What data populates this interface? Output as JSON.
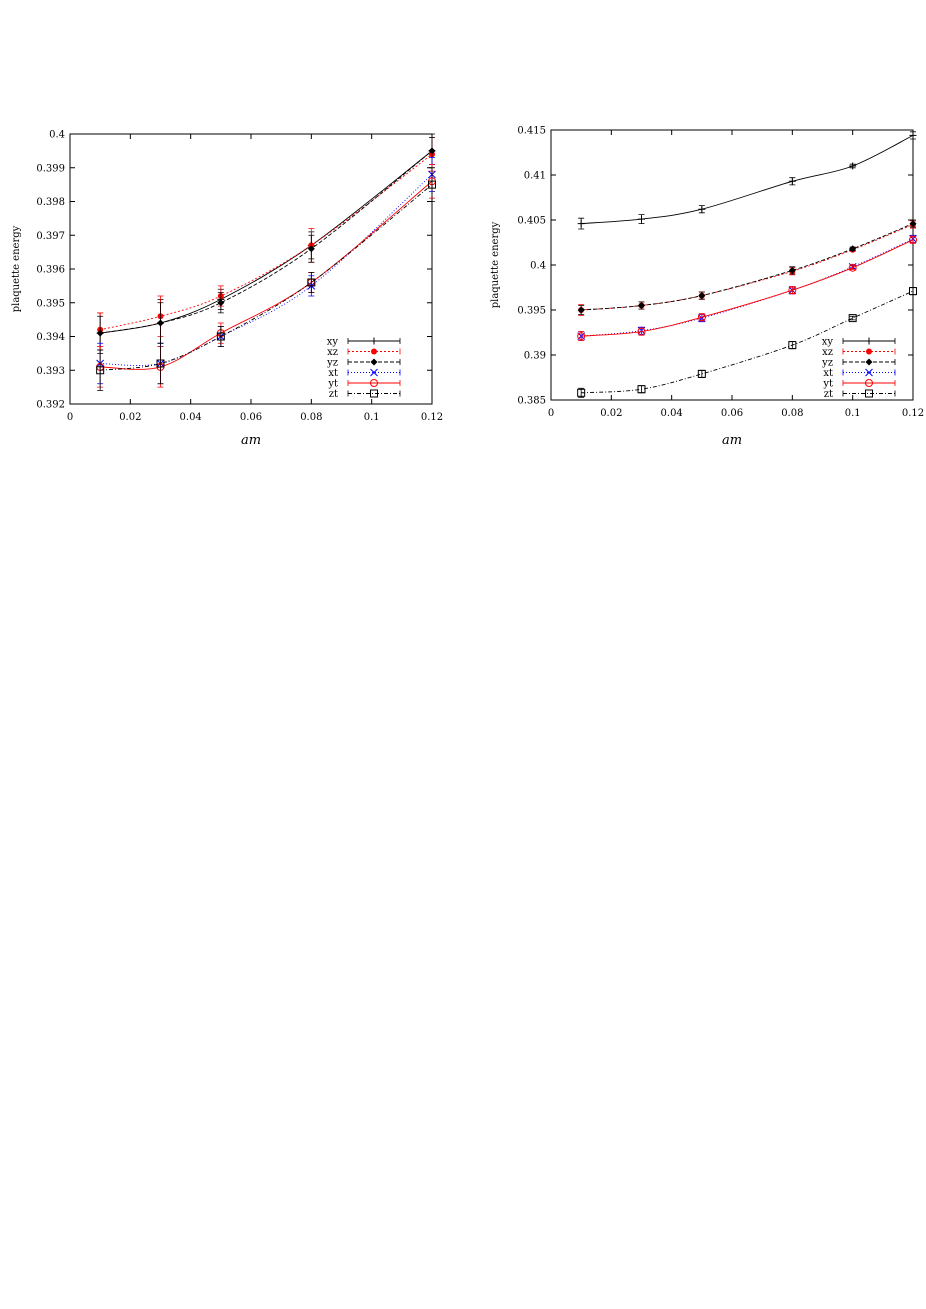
{
  "chart_data": [
    {
      "type": "line",
      "xlabel": "am",
      "ylabel": "plaquette energy",
      "xlim": [
        0,
        0.12
      ],
      "ylim": [
        0.392,
        0.4
      ],
      "xticks": [
        "0",
        "0.02",
        "0.04",
        "0.06",
        "0.08",
        "0.1",
        "0.12"
      ],
      "yticks": [
        "0.392",
        "0.393",
        "0.394",
        "0.395",
        "0.396",
        "0.397",
        "0.398",
        "0.399",
        "0.4"
      ],
      "x": [
        0.01,
        0.03,
        0.05,
        0.08,
        0.12
      ],
      "legend_position": "bottom-right",
      "series": [
        {
          "name": "xy",
          "color": "#000000",
          "marker": "plus",
          "dash": "",
          "values": [
            0.3941,
            0.3944,
            0.3951,
            0.3967,
            0.3995
          ],
          "errors": [
            0.0006,
            0.0007,
            0.0003,
            0.0004,
            0.0005
          ]
        },
        {
          "name": "xz",
          "color": "#ff0000",
          "marker": "filled-circle",
          "dash": "2,2",
          "values": [
            0.3942,
            0.3946,
            0.3952,
            0.3967,
            0.3994
          ],
          "errors": [
            0.0005,
            0.0006,
            0.0003,
            0.0005,
            0.0005
          ]
        },
        {
          "name": "yz",
          "color": "#000000",
          "marker": "filled-diamond",
          "dash": "4,2",
          "values": [
            0.3941,
            0.3944,
            0.395,
            0.3966,
            0.3995
          ],
          "errors": [
            0.0005,
            0.0006,
            0.0003,
            0.0004,
            0.0004
          ]
        },
        {
          "name": "xt",
          "color": "#0000ff",
          "marker": "cross",
          "dash": "1,2",
          "values": [
            0.3932,
            0.3932,
            0.394,
            0.3955,
            0.3988
          ],
          "errors": [
            0.0006,
            0.0006,
            0.0003,
            0.0003,
            0.0005
          ]
        },
        {
          "name": "yt",
          "color": "#ff0000",
          "marker": "open-circle",
          "dash": "",
          "values": [
            0.3931,
            0.3931,
            0.3941,
            0.3956,
            0.3986
          ],
          "errors": [
            0.0006,
            0.0006,
            0.0003,
            0.0003,
            0.0005
          ]
        },
        {
          "name": "zt",
          "color": "#000000",
          "marker": "open-square",
          "dash": "4,2,1,2",
          "values": [
            0.393,
            0.3932,
            0.394,
            0.3956,
            0.3985
          ],
          "errors": [
            0.0006,
            0.0006,
            0.0003,
            0.0003,
            0.0005
          ]
        }
      ]
    },
    {
      "type": "line",
      "xlabel": "am",
      "ylabel": "plaquette energy",
      "xlim": [
        0,
        0.12
      ],
      "ylim": [
        0.385,
        0.415
      ],
      "xticks": [
        "0",
        "0.02",
        "0.04",
        "0.06",
        "0.08",
        "0.1",
        "0.12"
      ],
      "yticks": [
        "0.385",
        "0.39",
        "0.395",
        "0.4",
        "0.405",
        "0.41",
        "0.415"
      ],
      "x": [
        0.01,
        0.03,
        0.05,
        0.08,
        0.1,
        0.12
      ],
      "legend_position": "bottom-right",
      "series": [
        {
          "name": "xy",
          "color": "#000000",
          "marker": "plus",
          "dash": "",
          "values": [
            0.4046,
            0.4051,
            0.4062,
            0.4093,
            0.411,
            0.4144
          ],
          "errors": [
            0.0006,
            0.0005,
            0.0004,
            0.0004,
            0.0002,
            0.0004
          ]
        },
        {
          "name": "xz",
          "color": "#ff0000",
          "marker": "filled-circle",
          "dash": "2,2",
          "values": [
            0.395,
            0.3955,
            0.3966,
            0.3993,
            0.4017,
            0.4045
          ],
          "errors": [
            0.0006,
            0.0004,
            0.0004,
            0.0004,
            0.0002,
            0.0004
          ]
        },
        {
          "name": "yz",
          "color": "#000000",
          "marker": "filled-diamond",
          "dash": "4,2",
          "values": [
            0.395,
            0.3955,
            0.3966,
            0.3994,
            0.4018,
            0.4046
          ],
          "errors": [
            0.0005,
            0.0004,
            0.0004,
            0.0004,
            0.0002,
            0.0004
          ]
        },
        {
          "name": "xt",
          "color": "#0000ff",
          "marker": "cross",
          "dash": "1,2",
          "values": [
            0.3921,
            0.3927,
            0.3941,
            0.3972,
            0.3998,
            0.4029
          ],
          "errors": [
            0.0005,
            0.0004,
            0.0004,
            0.0004,
            0.0002,
            0.0004
          ]
        },
        {
          "name": "yt",
          "color": "#ff0000",
          "marker": "open-circle",
          "dash": "",
          "values": [
            0.3921,
            0.3926,
            0.3942,
            0.3972,
            0.3997,
            0.4028
          ],
          "errors": [
            0.0005,
            0.0004,
            0.0004,
            0.0004,
            0.0002,
            0.0004
          ]
        },
        {
          "name": "zt",
          "color": "#000000",
          "marker": "open-square",
          "dash": "4,2,1,2",
          "values": [
            0.3858,
            0.3862,
            0.3879,
            0.3911,
            0.3941,
            0.3971
          ],
          "errors": [
            0.0005,
            0.0004,
            0.0004,
            0.0004,
            0.0002,
            0.0004
          ]
        }
      ]
    }
  ]
}
